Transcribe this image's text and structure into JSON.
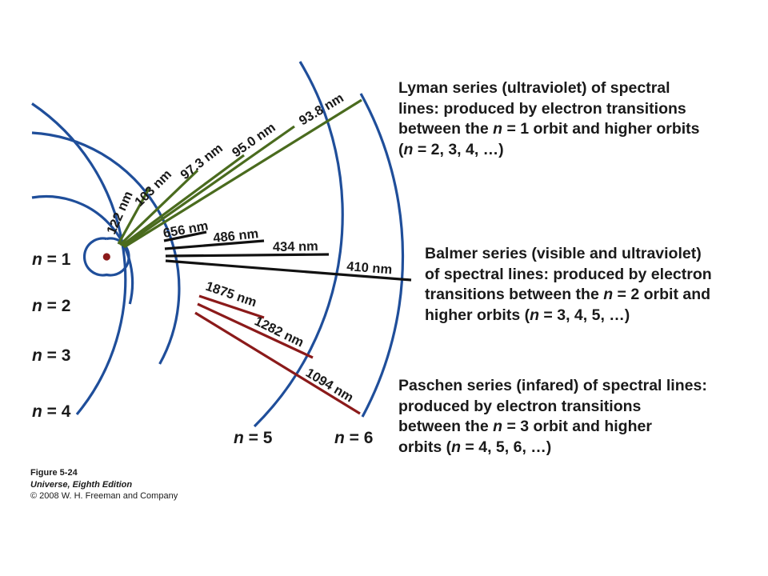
{
  "colors": {
    "orbit": "#1f4e9a",
    "nucleus": "#8b1a1a",
    "lyman": "#4a6b1e",
    "balmer": "#111111",
    "paschen": "#8b1a1a"
  },
  "orbit_labels": {
    "n1": "n = 1",
    "n2": "n = 2",
    "n3": "n = 3",
    "n4": "n = 4",
    "n5": "n = 5",
    "n6": "n = 6"
  },
  "lyman": {
    "lines": [
      {
        "label": "122 nm"
      },
      {
        "label": "103 nm"
      },
      {
        "label": "97.3 nm"
      },
      {
        "label": "95.0 nm"
      },
      {
        "label": "93.8 nm"
      }
    ],
    "description": [
      "Lyman series (ultraviolet) of spectral",
      "lines: produced by electron transitions",
      [
        "between the ",
        "n",
        " = 1 orbit and higher orbits"
      ],
      [
        "(",
        "n",
        " = 2, 3, 4, …)"
      ]
    ]
  },
  "balmer": {
    "lines": [
      {
        "label": "656 nm"
      },
      {
        "label": "486 nm"
      },
      {
        "label": "434 nm"
      },
      {
        "label": "410 nm"
      }
    ],
    "description": [
      "Balmer series (visible and ultraviolet)",
      "of spectral lines: produced by electron",
      [
        "transitions between the ",
        "n",
        " = 2 orbit and"
      ],
      [
        "higher orbits (",
        "n",
        " = 3, 4, 5, …)"
      ]
    ]
  },
  "paschen": {
    "lines": [
      {
        "label": "1875 nm"
      },
      {
        "label": "1282 nm"
      },
      {
        "label": "1094 nm"
      }
    ],
    "description": [
      "Paschen series (infared) of spectral lines:",
      "produced by electron transitions",
      [
        "between the ",
        "n",
        " = 3 orbit and higher"
      ],
      [
        "orbits (",
        "n",
        " = 4, 5, 6, …)"
      ]
    ]
  },
  "caption": {
    "figure": "Figure 5-24",
    "book": "Universe, Eighth Edition",
    "copyright": "© 2008 W. H. Freeman and Company"
  }
}
